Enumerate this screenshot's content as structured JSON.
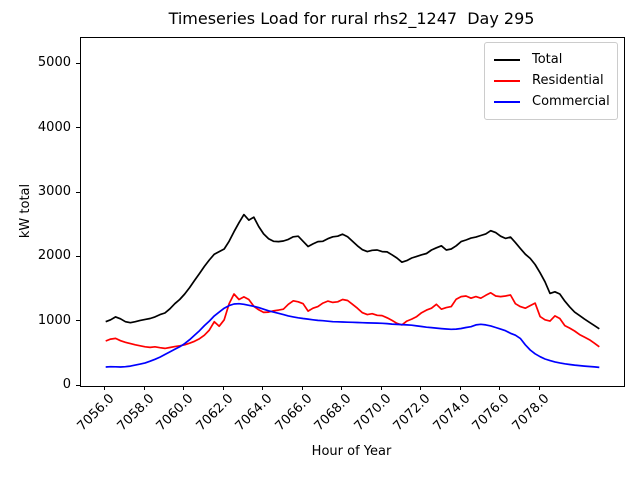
{
  "title": "Timeseries Load for rural rhs2_1247  Day 295",
  "axes": {
    "xlabel": "Hour of Year",
    "ylabel": "kW total"
  },
  "legend": {
    "position": "upper right",
    "items": [
      {
        "label": "Total",
        "color": "#000000"
      },
      {
        "label": "Residential",
        "color": "#ff0000"
      },
      {
        "label": "Commercial",
        "color": "#0000ff"
      }
    ]
  },
  "chart_data": {
    "type": "line",
    "title": "Timeseries Load for rural rhs2_1247  Day 295",
    "xlabel": "Hour of Year",
    "ylabel": "kW total",
    "grid": false,
    "legend_position": "upper right",
    "xlim": [
      7054.75,
      7082.25
    ],
    "ylim": [
      0,
      5412
    ],
    "x_ticks": [
      7056,
      7058,
      7060,
      7062,
      7064,
      7066,
      7068,
      7070,
      7072,
      7074,
      7076,
      7078
    ],
    "x_tick_labels": [
      "7056.0",
      "7058.0",
      "7060.0",
      "7062.0",
      "7064.0",
      "7066.0",
      "7068.0",
      "7070.0",
      "7072.0",
      "7074.0",
      "7076.0",
      "7078.0"
    ],
    "y_ticks": [
      0,
      1000,
      2000,
      3000,
      4000,
      5000
    ],
    "y_tick_labels": [
      "0",
      "1000",
      "2000",
      "3000",
      "4000",
      "5000"
    ],
    "x": [
      7056.0,
      7056.25,
      7056.5,
      7056.75,
      7057.0,
      7057.25,
      7057.5,
      7057.75,
      7058.0,
      7058.25,
      7058.5,
      7058.75,
      7059.0,
      7059.25,
      7059.5,
      7059.75,
      7060.0,
      7060.25,
      7060.5,
      7060.75,
      7061.0,
      7061.25,
      7061.5,
      7061.75,
      7062.0,
      7062.25,
      7062.5,
      7062.75,
      7063.0,
      7063.25,
      7063.5,
      7063.75,
      7064.0,
      7064.25,
      7064.5,
      7064.75,
      7065.0,
      7065.25,
      7065.5,
      7065.75,
      7066.0,
      7066.25,
      7066.5,
      7066.75,
      7067.0,
      7067.25,
      7067.5,
      7067.75,
      7068.0,
      7068.25,
      7068.5,
      7068.75,
      7069.0,
      7069.25,
      7069.5,
      7069.75,
      7070.0,
      7070.25,
      7070.5,
      7070.75,
      7071.0,
      7071.25,
      7071.5,
      7071.75,
      7072.0,
      7072.25,
      7072.5,
      7072.75,
      7073.0,
      7073.25,
      7073.5,
      7073.75,
      7074.0,
      7074.25,
      7074.5,
      7074.75,
      7075.0,
      7075.25,
      7075.5,
      7075.75,
      7076.0,
      7076.25,
      7076.5,
      7076.75,
      7077.0,
      7077.25,
      7077.5,
      7077.75,
      7078.0,
      7078.25,
      7078.5,
      7078.75,
      7079.0,
      7079.25,
      7079.5,
      7079.75,
      7080.0,
      7080.25,
      7080.5,
      7080.75,
      7081.0
    ],
    "series": [
      {
        "name": "Total",
        "color": "#000000",
        "values": [
          1000,
          1030,
          1075,
          1045,
          1000,
          985,
          1000,
          1020,
          1035,
          1050,
          1075,
          1110,
          1135,
          1200,
          1280,
          1345,
          1430,
          1530,
          1640,
          1750,
          1860,
          1960,
          2050,
          2090,
          2130,
          2250,
          2400,
          2540,
          2665,
          2580,
          2625,
          2480,
          2365,
          2290,
          2250,
          2245,
          2255,
          2280,
          2320,
          2330,
          2250,
          2170,
          2210,
          2245,
          2250,
          2290,
          2320,
          2330,
          2360,
          2320,
          2250,
          2180,
          2120,
          2090,
          2110,
          2115,
          2090,
          2085,
          2040,
          1990,
          1925,
          1950,
          1990,
          2015,
          2040,
          2060,
          2115,
          2150,
          2180,
          2115,
          2130,
          2180,
          2245,
          2270,
          2300,
          2315,
          2340,
          2365,
          2415,
          2385,
          2330,
          2295,
          2315,
          2230,
          2140,
          2050,
          1985,
          1890,
          1760,
          1620,
          1440,
          1465,
          1430,
          1320,
          1230,
          1150,
          1095,
          1040,
          990,
          940,
          890
        ]
      },
      {
        "name": "Residential",
        "color": "#ff0000",
        "values": [
          700,
          730,
          740,
          705,
          680,
          660,
          640,
          625,
          610,
          600,
          610,
          595,
          585,
          598,
          612,
          625,
          640,
          665,
          695,
          735,
          790,
          870,
          1000,
          930,
          1030,
          1280,
          1430,
          1345,
          1385,
          1345,
          1240,
          1185,
          1145,
          1150,
          1170,
          1180,
          1195,
          1270,
          1325,
          1310,
          1280,
          1165,
          1210,
          1235,
          1290,
          1320,
          1300,
          1310,
          1345,
          1330,
          1270,
          1210,
          1140,
          1110,
          1125,
          1100,
          1095,
          1060,
          1020,
          975,
          950,
          1010,
          1040,
          1080,
          1140,
          1180,
          1210,
          1270,
          1195,
          1220,
          1235,
          1350,
          1390,
          1400,
          1365,
          1390,
          1365,
          1410,
          1450,
          1400,
          1390,
          1400,
          1415,
          1280,
          1235,
          1210,
          1250,
          1290,
          1080,
          1030,
          1010,
          1090,
          1050,
          940,
          900,
          855,
          800,
          760,
          720,
          665,
          610
        ]
      },
      {
        "name": "Commercial",
        "color": "#0000ff",
        "values": [
          295,
          300,
          298,
          295,
          300,
          310,
          325,
          340,
          360,
          385,
          415,
          450,
          490,
          530,
          570,
          610,
          660,
          720,
          790,
          860,
          940,
          1010,
          1090,
          1150,
          1210,
          1250,
          1275,
          1280,
          1270,
          1255,
          1240,
          1220,
          1195,
          1170,
          1150,
          1130,
          1110,
          1090,
          1075,
          1060,
          1050,
          1040,
          1030,
          1020,
          1015,
          1008,
          1000,
          998,
          995,
          992,
          990,
          988,
          985,
          982,
          980,
          978,
          975,
          970,
          962,
          958,
          955,
          950,
          945,
          935,
          925,
          915,
          908,
          900,
          893,
          886,
          882,
          885,
          895,
          910,
          922,
          950,
          960,
          950,
          935,
          910,
          885,
          860,
          820,
          790,
          740,
          640,
          560,
          500,
          455,
          420,
          395,
          375,
          360,
          345,
          335,
          325,
          318,
          310,
          303,
          297,
          290
        ]
      }
    ]
  }
}
